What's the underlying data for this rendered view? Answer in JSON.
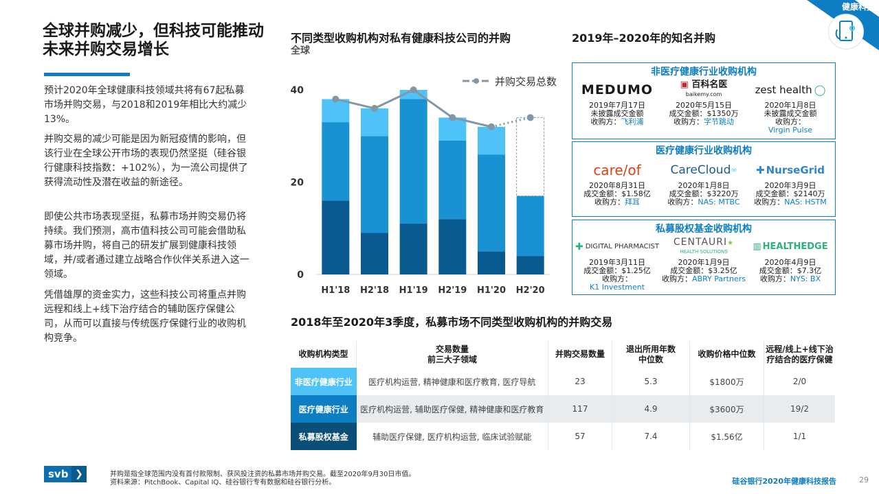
{
  "corner": {
    "tag": "健康科技",
    "icon": "tablet-stethoscope-icon"
  },
  "left": {
    "title": "全球并购减少，但科技可能推动未来并购交易增长",
    "paragraphs": [
      "预计2020年全球健康科技领域共将有67起私募市场并购交易，与2018和2019年相比大约减少13%。",
      "并购交易的减少可能是因为新冠疫情的影响，但该行业在全球公开市场的表现仍然坚挺（硅谷银行健康科技指数：+102%），为一流公司提供了获得流动性及潜在收益的新途径。",
      "即使公共市场表现坚挺，私募市场并购交易仍将持续。我们预测，高市值科技公司可能会借助私募市场并购，将自己的研发扩展到健康科技领域，并/或者通过建立战略合作伙伴关系进入这一领域。",
      "凭借雄厚的资金实力，这些科技公司将重点并购远程和线上+线下治疗结合的辅助医疗保健公司，从而可以直接与传统医疗保健行业的收购机构竞争。"
    ]
  },
  "chart": {
    "title": "不同类型收购机构对私有健康科技公司的并购",
    "subtitle": "全球",
    "legend_label": "并购交易总数",
    "colors": {
      "pe": "#0a5a92",
      "healthcare": "#1992d4",
      "non_healthcare": "#4fc3f7",
      "line": "#8396a6"
    }
  },
  "chart_data": {
    "type": "bar",
    "stacked": true,
    "categories": [
      "H1'18",
      "H2'18",
      "H1'19",
      "H2'19",
      "H1'20",
      "H2'20"
    ],
    "series": [
      {
        "values": [
          16,
          9,
          11,
          12,
          5,
          4
        ]
      },
      {
        "values": [
          17,
          21,
          27,
          17,
          21,
          13
        ]
      },
      {
        "values": [
          5,
          6,
          2,
          5,
          6,
          0
        ]
      }
    ],
    "line": {
      "name": "并购交易总数",
      "values": [
        38,
        36,
        40,
        34,
        32,
        34
      ],
      "projected_last": true
    },
    "projected_box_value": 34,
    "y_ticks": [
      0,
      20,
      40
    ],
    "ylim": [
      0,
      40
    ]
  },
  "deals": {
    "title": "2019年–2020年的知名并购",
    "groups": [
      {
        "title": "非医疗健康行业收购机构",
        "items": [
          {
            "logo": "MEDUMO",
            "date": "2019年7月17日",
            "amount": "未披露成交金额",
            "acquirer_label": "收购方：",
            "acquirer": "飞利浦"
          },
          {
            "logo": "百科名医",
            "logo_sub": "baikemy.com",
            "date": "2020年5月15日",
            "amount": "成交金额：$1350万",
            "acquirer_label": "收购方：",
            "acquirer": "字节跳动"
          },
          {
            "logo": "zest health",
            "date": "2020年1月8日",
            "amount": "未披露成交金额",
            "acquirer_label": "收购方：",
            "acquirer": "Virgin Pulse"
          }
        ]
      },
      {
        "title": "医疗健康行业收购机构",
        "items": [
          {
            "logo": "care/of",
            "date": "2020年8月31日",
            "amount": "成交金额：$1.58亿",
            "acquirer_label": "收购方：",
            "acquirer": "拜耳"
          },
          {
            "logo": "CareCloud",
            "date": "2020年1月8日",
            "amount": "成交金额：$3220万",
            "acquirer_label": "收购方：",
            "acquirer": "NAS: MTBC"
          },
          {
            "logo": "NurseGrid",
            "date": "2020年3月9日",
            "amount": "成交金额：$2140万",
            "acquirer_label": "收购方：",
            "acquirer": "NAS: HSTM"
          }
        ]
      },
      {
        "title": "私募股权基金收购机构",
        "items": [
          {
            "logo": "DIGITAL PHARMACIST",
            "date": "2019年3月11日",
            "amount": "成交金额：$1.25亿",
            "acquirer_label": "收购方：",
            "acquirer": "K1 Investment"
          },
          {
            "logo": "CENTAURI",
            "logo_sub": "HEALTH SOLUTIONS",
            "date": "2020年1月9日",
            "amount": "成交金额：$3.25亿",
            "acquirer_label": "收购方：",
            "acquirer": "ABRY Partners"
          },
          {
            "logo": "HEALTHEDGE",
            "date": "2020年4月9日",
            "amount": "成交金额：$7.3亿",
            "acquirer_label": "收购方：",
            "acquirer": "NYS: BX"
          }
        ]
      }
    ]
  },
  "table": {
    "title": "2018年至2020年3季度，私募市场不同类型收购机构的并购交易",
    "headers": [
      "收购机构类型",
      "交易数量\n前三大子领域",
      "并购交易数量",
      "退出所用年数\n中位数",
      "收购价格中位数",
      "远程/线上+线下治\n疗结合的医疗保健"
    ],
    "rows": [
      {
        "type": "非医疗健康行业",
        "fields": "医疗机构运营, 精神健康和医疗教育, 医疗导航",
        "count": "23",
        "years": "5.3",
        "price": "$1800万",
        "remote": "2/0"
      },
      {
        "type": "医疗健康行业",
        "fields": "医疗机构运营, 辅助医疗保健, 精神健康和医疗教育",
        "count": "117",
        "years": "4.9",
        "price": "$3600万",
        "remote": "19/2"
      },
      {
        "type": "私募股权基金",
        "fields": "辅助医疗保健, 医疗机构运营, 临床试验赋能",
        "count": "57",
        "years": "7.4",
        "price": "$1.56亿",
        "remote": "1/1"
      }
    ]
  },
  "footer": {
    "logo_text": "svb",
    "logo_chevron": "❯",
    "note": "并购是指全球范围内没有首付款限制、获风投注资的私募市场并购交易。截至2020年9月30日市值。",
    "source": "资料来源：PitchBook、Capital IQ、硅谷银行专有数据和硅谷银行分析。",
    "report": "硅谷银行2020年健康科技报告",
    "page": "29"
  }
}
